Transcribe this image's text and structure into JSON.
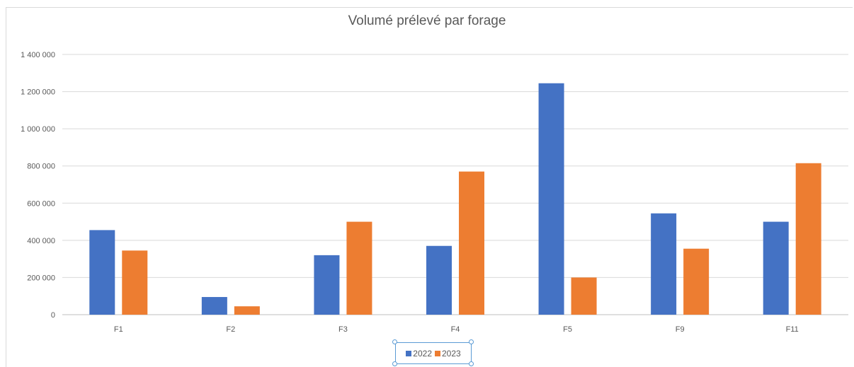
{
  "chart_data": {
    "type": "bar",
    "title": "Volumé prélevé par forage",
    "categories": [
      "F1",
      "F2",
      "F3",
      "F4",
      "F5",
      "F9",
      "F11"
    ],
    "series": [
      {
        "name": "2022",
        "color": "#4472c4",
        "values": [
          455000,
          95000,
          320000,
          370000,
          1245000,
          545000,
          500000
        ]
      },
      {
        "name": "2023",
        "color": "#ed7d31",
        "values": [
          345000,
          45000,
          500000,
          770000,
          200000,
          355000,
          815000
        ]
      }
    ],
    "ylim": [
      0,
      1400000
    ],
    "yticks": [
      "0",
      "200 000",
      "400 000",
      "600 000",
      "800 000",
      "1 000 000",
      "1 200 000",
      "1 400 000"
    ],
    "xlabel": "",
    "ylabel": "",
    "grid": true,
    "legend_position": "bottom"
  }
}
